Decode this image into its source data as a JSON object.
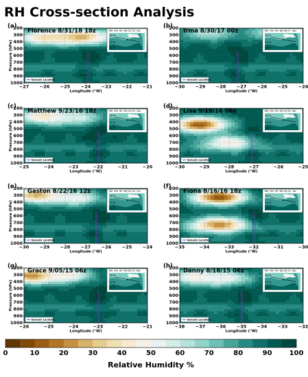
{
  "figure": {
    "title": "RH Cross-section Analysis"
  },
  "colors": {
    "brown_dark": "#8c510a",
    "brown": "#bf812d",
    "tan": "#dfc27d",
    "cream": "#f6e8c3",
    "white": "#f5f5f5",
    "mint": "#c7eae5",
    "teal_light": "#80cdc1",
    "teal": "#35978f",
    "teal_dark": "#01665e",
    "teal_darkest": "#003c30",
    "marker": "#8a2be2"
  },
  "chart_data": [
    {
      "id": "a",
      "type": "heatmap",
      "panel_label": "(a)",
      "storm": "Florence",
      "datetime": "8/31/18 18z",
      "xlabel": "Longitude (°W)",
      "ylabel": "Pressure (hPa)",
      "xlim": [
        -27,
        -21
      ],
      "ylim": [
        1000,
        200
      ],
      "xticks": [
        "−27",
        "−26",
        "−25",
        "−24",
        "−23",
        "−22",
        "−21"
      ],
      "yticks": [
        "200",
        "300",
        "400",
        "500",
        "600",
        "700",
        "800",
        "900",
        "1000"
      ],
      "genesis_lon": -23.9,
      "inset_title": "700 hPa RH 08/31/18 18z",
      "legend": "Genesis Location",
      "dry_features": [
        {
          "lon": -26.0,
          "p": 340,
          "rh": 38
        },
        {
          "lon": -24.2,
          "p": 330,
          "rh": 25
        },
        {
          "lon": -21.6,
          "p": 320,
          "rh": 40
        }
      ]
    },
    {
      "id": "b",
      "type": "heatmap",
      "panel_label": "(b)",
      "storm": "Irma",
      "datetime": "8/30/17 00z",
      "xlabel": "Longitude (°W)",
      "ylabel": "",
      "xlim": [
        -30,
        -24
      ],
      "ylim": [
        1000,
        200
      ],
      "xticks": [
        "−30",
        "−29",
        "−28",
        "−27",
        "−26",
        "−25",
        "−24"
      ],
      "yticks": [
        "200",
        "300",
        "400",
        "500",
        "600",
        "700",
        "800",
        "900",
        "1000"
      ],
      "genesis_lon": -27.2,
      "inset_title": "700 hPa RH 08/30/17 00z",
      "legend": "Genesis Location",
      "dry_features": [
        {
          "lon": -28.6,
          "p": 270,
          "rh": 60
        },
        {
          "lon": -25.6,
          "p": 270,
          "rh": 65
        }
      ]
    },
    {
      "id": "c",
      "type": "heatmap",
      "panel_label": "(c)",
      "storm": "Matthew",
      "datetime": "9/23/16 18z",
      "xlabel": "Longitude (°W)",
      "ylabel": "Pressure (hPa)",
      "xlim": [
        -25,
        -20
      ],
      "ylim": [
        1000,
        200
      ],
      "xticks": [
        "−25",
        "−24",
        "−23",
        "−22",
        "−21",
        "−20"
      ],
      "yticks": [
        "200",
        "300",
        "400",
        "500",
        "600",
        "700",
        "800",
        "900",
        "1000"
      ],
      "genesis_lon": -22.0,
      "inset_title": "700 hPa RH 09/23/16 18z",
      "legend": "Genesis Location",
      "dry_features": [
        {
          "lon": -24.1,
          "p": 320,
          "rh": 35
        },
        {
          "lon": -22.9,
          "p": 330,
          "rh": 55
        }
      ]
    },
    {
      "id": "d",
      "type": "heatmap",
      "panel_label": "(d)",
      "storm": "Lisa",
      "datetime": "9/19/16 06z",
      "xlabel": "Longitude (°W)",
      "ylabel": "",
      "xlim": [
        -30,
        -25
      ],
      "ylim": [
        1000,
        200
      ],
      "xticks": [
        "−30",
        "−29",
        "−28",
        "−27",
        "−26",
        "−25"
      ],
      "yticks": [
        "200",
        "300",
        "400",
        "500",
        "600",
        "700",
        "800",
        "900",
        "1000"
      ],
      "genesis_lon": -27.1,
      "inset_title": "700 hPa RH 09/19/16 06z",
      "legend": "Genesis Location",
      "dry_features": [
        {
          "lon": -29.2,
          "p": 440,
          "rh": 12
        },
        {
          "lon": -28.0,
          "p": 700,
          "rh": 45
        }
      ]
    },
    {
      "id": "e",
      "type": "heatmap",
      "panel_label": "(e)",
      "storm": "Gaston",
      "datetime": "8/22/16 12z",
      "xlabel": "Longitude (°W)",
      "ylabel": "Pressure (hPa)",
      "xlim": [
        -30,
        -24
      ],
      "ylim": [
        1000,
        200
      ],
      "xticks": [
        "−30",
        "−29",
        "−28",
        "−27",
        "−26",
        "−25",
        "−24"
      ],
      "yticks": [
        "200",
        "300",
        "400",
        "500",
        "600",
        "700",
        "800",
        "900",
        "1000"
      ],
      "genesis_lon": -26.5,
      "inset_title": "700 hPa RH 08/22/16 12z",
      "legend": "Genesis Location",
      "dry_features": [
        {
          "lon": -29.3,
          "p": 300,
          "rh": 25
        },
        {
          "lon": -27.5,
          "p": 340,
          "rh": 50
        }
      ]
    },
    {
      "id": "f",
      "type": "heatmap",
      "panel_label": "(f)",
      "storm": "Fiona",
      "datetime": "8/16/16 18z",
      "xlabel": "Longitude (°W)",
      "ylabel": "",
      "xlim": [
        -35,
        -30
      ],
      "ylim": [
        1000,
        200
      ],
      "xticks": [
        "−35",
        "−34",
        "−33",
        "−32",
        "−31",
        "−30"
      ],
      "yticks": [
        "200",
        "300",
        "400",
        "500",
        "600",
        "700",
        "800",
        "900",
        "1000"
      ],
      "genesis_lon": -32.0,
      "inset_title": "700 hPa RH 08/16/16 18z",
      "legend": "Genesis Location",
      "dry_features": [
        {
          "lon": -33.4,
          "p": 330,
          "rh": 10
        },
        {
          "lon": -33.4,
          "p": 730,
          "rh": 20
        }
      ]
    },
    {
      "id": "g",
      "type": "heatmap",
      "panel_label": "(g)",
      "storm": "Grace",
      "datetime": "9/05/15 06z",
      "xlabel": "Longitude (°W)",
      "ylabel": "Pressure (hPa)",
      "xlim": [
        -26,
        -21
      ],
      "ylim": [
        1000,
        200
      ],
      "xticks": [
        "−26",
        "−25",
        "−24",
        "−23",
        "−22",
        "−21"
      ],
      "yticks": [
        "200",
        "300",
        "400",
        "500",
        "600",
        "700",
        "800",
        "900",
        "1000"
      ],
      "genesis_lon": -23.0,
      "inset_title": "700 hPa RH 09/05/15 06z",
      "legend": "Genesis Location",
      "dry_features": [
        {
          "lon": -25.6,
          "p": 310,
          "rh": 15
        },
        {
          "lon": -24.3,
          "p": 300,
          "rh": 45
        }
      ]
    },
    {
      "id": "h",
      "type": "heatmap",
      "panel_label": "(h)",
      "storm": "Danny",
      "datetime": "8/18/15 06z",
      "xlabel": "Longitude (°W)",
      "ylabel": "",
      "xlim": [
        -38,
        -32
      ],
      "ylim": [
        1000,
        200
      ],
      "xticks": [
        "−38",
        "−37",
        "−36",
        "−35",
        "−34",
        "−33",
        "−32"
      ],
      "yticks": [
        "200",
        "300",
        "400",
        "500",
        "600",
        "700",
        "800",
        "900",
        "1000"
      ],
      "genesis_lon": -35.0,
      "inset_title": "700 hPa RH 08/18/15 06z",
      "legend": "Genesis Location",
      "dry_features": [
        {
          "lon": -37.2,
          "p": 330,
          "rh": 45
        },
        {
          "lon": -35.8,
          "p": 350,
          "rh": 50
        }
      ]
    }
  ],
  "colorbar": {
    "label": "Relative Humidity %",
    "ticks": [
      "0",
      "10",
      "20",
      "30",
      "40",
      "50",
      "60",
      "70",
      "80",
      "90",
      "100"
    ],
    "range": [
      0,
      100
    ],
    "bins": 20
  }
}
